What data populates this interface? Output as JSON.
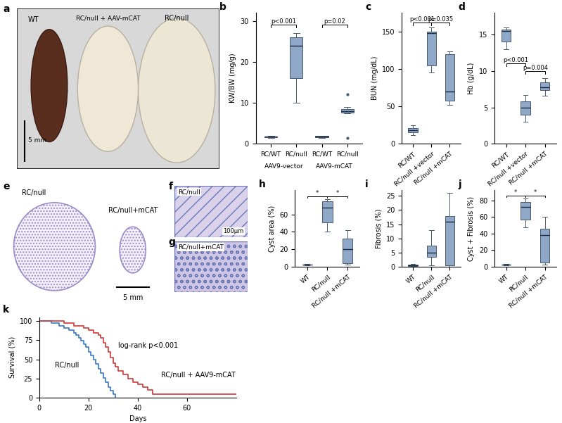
{
  "panels": {
    "a": {
      "labels": [
        "WT",
        "RC/null + AAV-mCAT",
        "RC/null"
      ],
      "scale_bar": "5 mm"
    },
    "e": {
      "labels": [
        "RC/null",
        "RC/null+mCAT"
      ],
      "scale_bar": "5 mm"
    },
    "f": {
      "label": "RC/null",
      "scale_bar": "100µm"
    },
    "g": {
      "label": "RC/null+mCAT"
    }
  },
  "chart_data": [
    {
      "type": "box",
      "panel_label": "b",
      "y_label": "KW/BW (mg/g)",
      "color": "#8fa8c8",
      "categories": [
        "RC/WT",
        "RC/null",
        "RC/WT",
        "RC/null"
      ],
      "group_labels": [
        "AAV9-vector",
        "AAV9-mCAT"
      ],
      "boxes": [
        {
          "min": 1.5,
          "q1": 1.6,
          "median": 1.7,
          "q3": 1.8,
          "max": 1.9,
          "outliers": []
        },
        {
          "min": 10,
          "q1": 16,
          "median": 24,
          "q3": 26,
          "max": 27,
          "outliers": []
        },
        {
          "min": 1.5,
          "q1": 1.6,
          "median": 1.8,
          "q3": 1.9,
          "max": 2.0,
          "outliers": []
        },
        {
          "min": 7.5,
          "q1": 7.7,
          "median": 8,
          "q3": 8.5,
          "max": 9,
          "outliers": [
            12,
            1.5
          ]
        }
      ],
      "ylim": [
        0,
        32
      ],
      "yticks": [
        0,
        10,
        20,
        30
      ],
      "annotations": [
        {
          "text": "p<0.001",
          "between": [
            0,
            1
          ],
          "y": 29
        },
        {
          "text": "p=0.02",
          "between": [
            2,
            3
          ],
          "y": 29
        }
      ]
    },
    {
      "type": "box",
      "panel_label": "c",
      "y_label": "BUN (mg/dL)",
      "color": "#8fa8c8",
      "categories": [
        "RC/WT",
        "RC/null +vector",
        "RC/null +mCAT"
      ],
      "boxes": [
        {
          "min": 12,
          "q1": 15,
          "median": 18,
          "q3": 21,
          "max": 25,
          "outliers": []
        },
        {
          "min": 95,
          "q1": 105,
          "median": 148,
          "q3": 150,
          "max": 155,
          "outliers": []
        },
        {
          "min": 52,
          "q1": 58,
          "median": 70,
          "q3": 120,
          "max": 123,
          "outliers": []
        }
      ],
      "ylim": [
        0,
        175
      ],
      "yticks": [
        0,
        50,
        100,
        150
      ],
      "annotations": [
        {
          "text": "p<0.001",
          "between": [
            0,
            1
          ],
          "y": 162
        },
        {
          "text": "p=0.035",
          "between": [
            1,
            2
          ],
          "y": 162
        }
      ]
    },
    {
      "type": "box",
      "panel_label": "d",
      "y_label": "Hb (g/dL)",
      "color": "#8fa8c8",
      "categories": [
        "RC/WT",
        "RC/null +vector",
        "RC/null +mCAT"
      ],
      "boxes": [
        {
          "min": 13,
          "q1": 14,
          "median": 15.5,
          "q3": 15.7,
          "max": 16,
          "outliers": []
        },
        {
          "min": 3,
          "q1": 4,
          "median": 5,
          "q3": 5.8,
          "max": 6.7,
          "outliers": []
        },
        {
          "min": 6.6,
          "q1": 7.4,
          "median": 7.8,
          "q3": 8.4,
          "max": 9,
          "outliers": []
        }
      ],
      "ylim": [
        0,
        18
      ],
      "yticks": [
        0,
        5,
        10,
        15
      ],
      "annotations": [
        {
          "text": "p<0.001",
          "between": [
            0,
            1
          ],
          "y": 11
        },
        {
          "text": "p=0.004",
          "between": [
            1,
            2
          ],
          "y": 10
        }
      ]
    },
    {
      "type": "box",
      "panel_label": "h",
      "y_label": "Cyst area (%)",
      "color": "#8fa8c8",
      "categories": [
        "WT",
        "RC/null",
        "RC/null +mCAT"
      ],
      "boxes": [
        {
          "min": 1.5,
          "q1": 2,
          "median": 2.2,
          "q3": 2.5,
          "max": 3,
          "outliers": []
        },
        {
          "min": 40,
          "q1": 51,
          "median": 68,
          "q3": 75,
          "max": 78,
          "outliers": []
        },
        {
          "min": 2,
          "q1": 4,
          "median": 20,
          "q3": 32,
          "max": 42,
          "outliers": []
        }
      ],
      "ylim": [
        0,
        88
      ],
      "yticks": [
        0,
        20,
        40,
        60
      ],
      "annotations": [
        {
          "text": "*",
          "between": [
            0,
            1
          ],
          "y": 81
        },
        {
          "text": "*",
          "between": [
            1,
            2
          ],
          "y": 81
        }
      ]
    },
    {
      "type": "box",
      "panel_label": "i",
      "y_label": "Fibrosis (%)",
      "color": "#8fa8c8",
      "categories": [
        "WT",
        "RC/null",
        "RC/null +mCAT"
      ],
      "boxes": [
        {
          "min": 0,
          "q1": 0.2,
          "median": 0.4,
          "q3": 0.6,
          "max": 0.8,
          "outliers": []
        },
        {
          "min": 0.5,
          "q1": 3.5,
          "median": 5,
          "q3": 7.5,
          "max": 13,
          "outliers": []
        },
        {
          "min": 0,
          "q1": 0.3,
          "median": 16,
          "q3": 17.8,
          "max": 26,
          "outliers": []
        }
      ],
      "ylim": [
        0,
        27
      ],
      "yticks": [
        0,
        5,
        10,
        15,
        20,
        25
      ],
      "annotations": []
    },
    {
      "type": "box",
      "panel_label": "j",
      "y_label": "Cyst + Fibrosis (%)",
      "color": "#8fa8c8",
      "categories": [
        "WT",
        "RC/null",
        "RC/null +mCAT"
      ],
      "boxes": [
        {
          "min": 1.5,
          "q1": 2,
          "median": 2.3,
          "q3": 2.6,
          "max": 3,
          "outliers": []
        },
        {
          "min": 47,
          "q1": 57,
          "median": 72,
          "q3": 78,
          "max": 82,
          "outliers": []
        },
        {
          "min": 2,
          "q1": 5,
          "median": 38,
          "q3": 46,
          "max": 60,
          "outliers": []
        }
      ],
      "ylim": [
        0,
        92
      ],
      "yticks": [
        0,
        20,
        40,
        60,
        80
      ],
      "annotations": [
        {
          "text": "*",
          "between": [
            0,
            1
          ],
          "y": 86
        },
        {
          "text": "*",
          "between": [
            1,
            2
          ],
          "y": 86
        }
      ]
    },
    {
      "type": "step",
      "panel_label": "k",
      "y_label": "Survival (%)",
      "x_label": "Days",
      "annotation": "log-rank p<0.001",
      "series": [
        {
          "name": "RC/null",
          "color": "#3a78c2",
          "x": [
            0,
            5,
            8,
            10,
            12,
            14,
            15,
            16,
            17,
            18,
            19,
            20,
            21,
            22,
            23,
            24,
            25,
            26,
            27,
            28,
            29,
            30,
            31
          ],
          "values": [
            100,
            97,
            94,
            91,
            88,
            85,
            82,
            78,
            74,
            70,
            66,
            60,
            55,
            50,
            44,
            38,
            32,
            26,
            20,
            14,
            9,
            5,
            0
          ]
        },
        {
          "name": "RC/null + AAV9-mCAT",
          "color": "#d03a3a",
          "x": [
            0,
            10,
            14,
            18,
            20,
            22,
            24,
            25,
            26,
            27,
            28,
            29,
            30,
            31,
            32,
            34,
            36,
            38,
            40,
            42,
            44,
            46,
            80
          ],
          "values": [
            100,
            97,
            94,
            91,
            88,
            85,
            82,
            78,
            72,
            66,
            60,
            52,
            45,
            40,
            35,
            30,
            25,
            20,
            17,
            14,
            10,
            5,
            5
          ]
        }
      ],
      "xlim": [
        0,
        80
      ],
      "xticks": [
        0,
        20,
        40,
        60
      ],
      "ylim": [
        0,
        105
      ],
      "yticks": [
        0,
        25,
        50,
        75,
        100
      ]
    }
  ]
}
